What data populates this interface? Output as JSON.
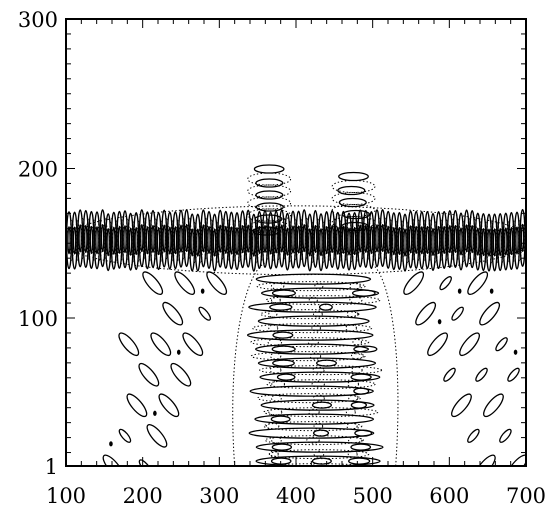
{
  "chart_data": {
    "type": "contour",
    "title": "",
    "xlabel": "",
    "ylabel": "",
    "xlim": [
      100,
      700
    ],
    "ylim": [
      1,
      300
    ],
    "x_ticks": [
      {
        "value": 100,
        "label": "100"
      },
      {
        "value": 200,
        "label": "200"
      },
      {
        "value": 300,
        "label": "300"
      },
      {
        "value": 400,
        "label": "400"
      },
      {
        "value": 500,
        "label": "500"
      },
      {
        "value": 600,
        "label": "600"
      },
      {
        "value": 700,
        "label": "700"
      }
    ],
    "y_ticks": [
      {
        "value": 1,
        "label": "1"
      },
      {
        "value": 100,
        "label": "100"
      },
      {
        "value": 200,
        "label": "200"
      },
      {
        "value": 300,
        "label": "300"
      }
    ],
    "contour_styles": [
      "solid",
      "dotted"
    ],
    "features": {
      "horizontal_band": {
        "x_range": [
          100,
          700
        ],
        "y_center": 152,
        "half_width": 20
      },
      "central_packet": {
        "x_range": [
          320,
          530
        ],
        "y_range": [
          1,
          130
        ]
      },
      "upper_lobes": [
        {
          "x_range": [
            330,
            400
          ],
          "y_range": [
            160,
            205
          ]
        },
        {
          "x_range": [
            440,
            510
          ],
          "y_range": [
            160,
            200
          ]
        }
      ],
      "oblique_wave_trains": [
        {
          "direction": "left",
          "x_range": [
            150,
            320
          ],
          "y_range": [
            1,
            130
          ]
        },
        {
          "direction": "right",
          "x_range": [
            530,
            700
          ],
          "y_range": [
            1,
            130
          ]
        }
      ]
    }
  }
}
